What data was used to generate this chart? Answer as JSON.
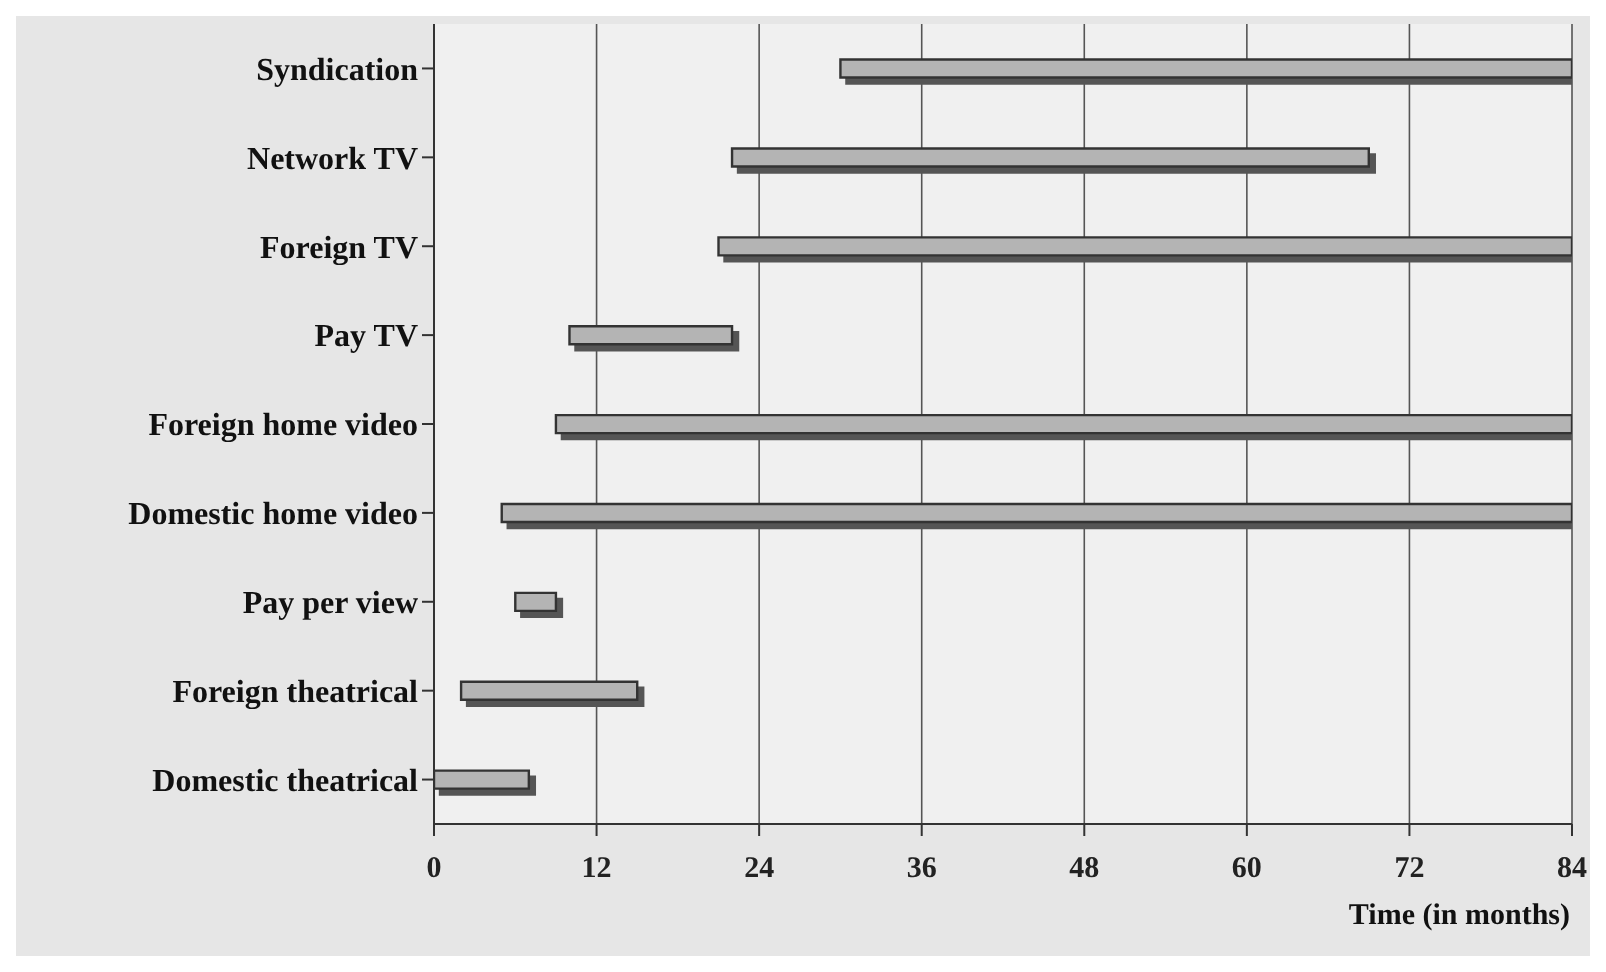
{
  "chart_data": {
    "type": "bar",
    "orientation": "horizontal",
    "xlabel": "Time (in months)",
    "categories": [
      "Syndication",
      "Network TV",
      "Foreign TV",
      "Pay TV",
      "Foreign home video",
      "Domestic home video",
      "Pay per view",
      "Foreign theatrical",
      "Domestic theatrical"
    ],
    "base": [
      30,
      22,
      21,
      10,
      9,
      5,
      6,
      2,
      0
    ],
    "values": [
      54,
      47,
      63,
      12,
      75,
      79,
      3,
      13,
      7
    ],
    "color": "#b4b4b4",
    "xlim": [
      0,
      84
    ],
    "xticks": [
      0,
      12,
      24,
      36,
      48,
      60,
      72,
      84
    ],
    "grid": "x"
  }
}
